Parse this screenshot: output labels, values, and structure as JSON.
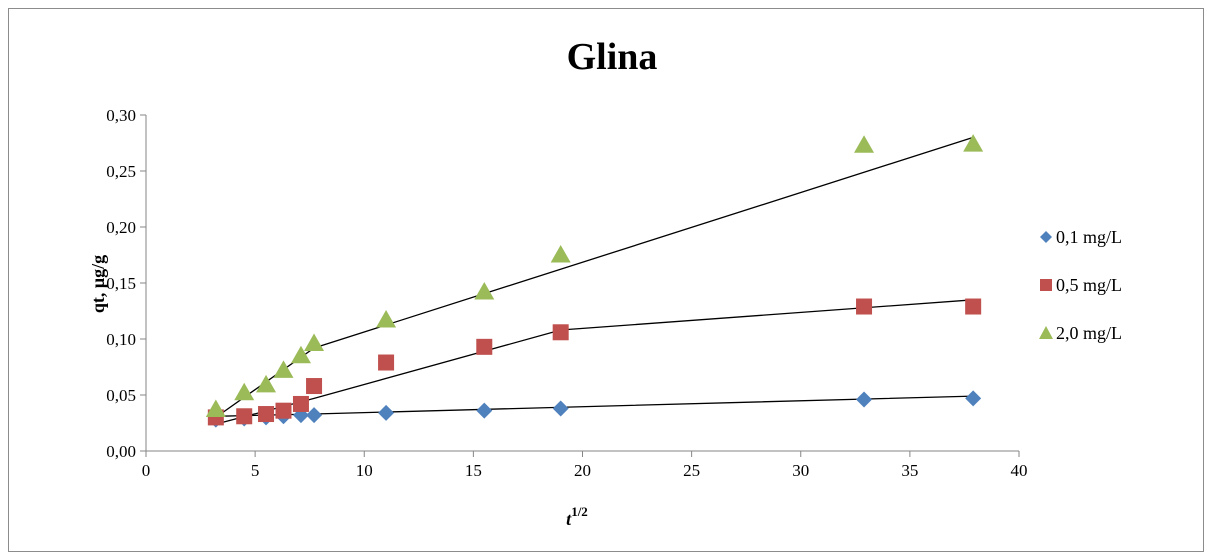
{
  "chart_data": {
    "type": "scatter",
    "title": "Glina",
    "xlabel": "t",
    "xlabel_sup": "1/2",
    "ylabel": "qt, μg/g",
    "xlim": [
      0,
      40
    ],
    "ylim": [
      0,
      0.3
    ],
    "x_ticks": [
      0,
      5,
      10,
      15,
      20,
      25,
      30,
      35,
      40
    ],
    "x_tick_labels": [
      "0",
      "5",
      "10",
      "15",
      "20",
      "25",
      "30",
      "35",
      "40"
    ],
    "y_ticks": [
      0,
      0.05,
      0.1,
      0.15,
      0.2,
      0.25,
      0.3
    ],
    "y_tick_labels": [
      "0,00",
      "0,05",
      "0,10",
      "0,15",
      "0,20",
      "0,25",
      "0,30"
    ],
    "grid": false,
    "legend_position": "right",
    "series": [
      {
        "name": "0,1 mg/L",
        "marker": "diamond",
        "color": "#4f81bd",
        "x": [
          3.2,
          4.5,
          5.5,
          6.3,
          7.1,
          7.7,
          11.0,
          15.5,
          19.0,
          32.9,
          37.9
        ],
        "y": [
          0.028,
          0.029,
          0.03,
          0.031,
          0.032,
          0.032,
          0.034,
          0.036,
          0.038,
          0.046,
          0.047
        ],
        "trend": [
          [
            3.2,
            0.031
          ],
          [
            7.7,
            0.033
          ],
          [
            37.9,
            0.049
          ]
        ]
      },
      {
        "name": "0,5 mg/L",
        "marker": "square",
        "color": "#c0504d",
        "x": [
          3.2,
          4.5,
          5.5,
          6.3,
          7.1,
          7.7,
          11.0,
          15.5,
          19.0,
          32.9,
          37.9
        ],
        "y": [
          0.03,
          0.031,
          0.033,
          0.036,
          0.042,
          0.058,
          0.079,
          0.093,
          0.106,
          0.129,
          0.129
        ],
        "trend": [
          [
            3.2,
            0.024
          ],
          [
            7.7,
            0.047
          ],
          [
            19.0,
            0.108
          ],
          [
            37.9,
            0.135
          ]
        ]
      },
      {
        "name": "2,0 mg/L",
        "marker": "triangle",
        "color": "#9bbb59",
        "x": [
          3.2,
          4.5,
          5.5,
          6.3,
          7.1,
          7.7,
          11.0,
          15.5,
          19.0,
          32.9,
          37.9
        ],
        "y": [
          0.037,
          0.052,
          0.059,
          0.072,
          0.085,
          0.096,
          0.117,
          0.142,
          0.175,
          0.273,
          0.274
        ],
        "trend": [
          [
            3.2,
            0.03
          ],
          [
            7.7,
            0.092
          ],
          [
            37.9,
            0.28
          ]
        ]
      }
    ]
  }
}
